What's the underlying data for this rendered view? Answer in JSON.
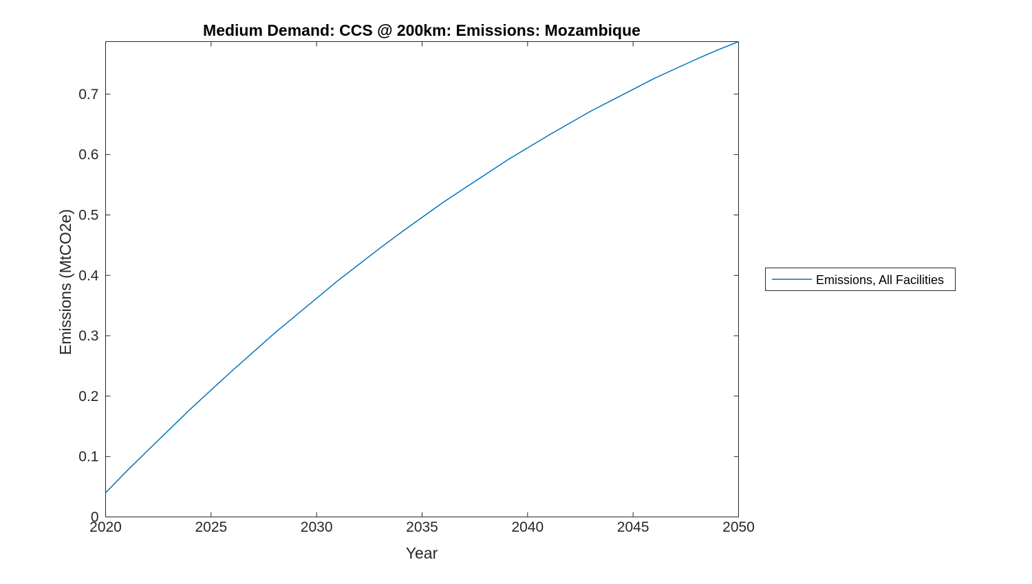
{
  "figure": {
    "background": "#ffffff"
  },
  "chart_data": {
    "type": "line",
    "title": "Medium Demand: CCS @ 200km: Emissions: Mozambique",
    "xlabel": "Year",
    "ylabel": "Emissions (MtCO2e)",
    "xlim": [
      2020,
      2050
    ],
    "ylim": [
      0,
      0.787
    ],
    "xticks": [
      2020,
      2025,
      2030,
      2035,
      2040,
      2045,
      2050
    ],
    "yticks": [
      0,
      0.1,
      0.2,
      0.3,
      0.4,
      0.5,
      0.6,
      0.7
    ],
    "grid": false,
    "axis_color": "#262626",
    "legend": {
      "position": "outside-right",
      "border_color": "#262626",
      "entries": [
        "Emissions, All Facilities"
      ]
    },
    "x": [
      2020,
      2021,
      2022,
      2023,
      2024,
      2025,
      2026,
      2027,
      2028,
      2029,
      2030,
      2031,
      2032,
      2033,
      2034,
      2035,
      2036,
      2037,
      2038,
      2039,
      2040,
      2041,
      2042,
      2043,
      2044,
      2045,
      2046,
      2047,
      2048,
      2049,
      2050
    ],
    "series": [
      {
        "name": "Emissions, All Facilities",
        "color": "#0072BD",
        "values": [
          0.04,
          0.076,
          0.11,
          0.144,
          0.178,
          0.21,
          0.242,
          0.273,
          0.304,
          0.333,
          0.362,
          0.391,
          0.418,
          0.445,
          0.471,
          0.496,
          0.521,
          0.544,
          0.567,
          0.59,
          0.611,
          0.632,
          0.652,
          0.672,
          0.69,
          0.708,
          0.726,
          0.742,
          0.758,
          0.773,
          0.787
        ]
      }
    ]
  }
}
